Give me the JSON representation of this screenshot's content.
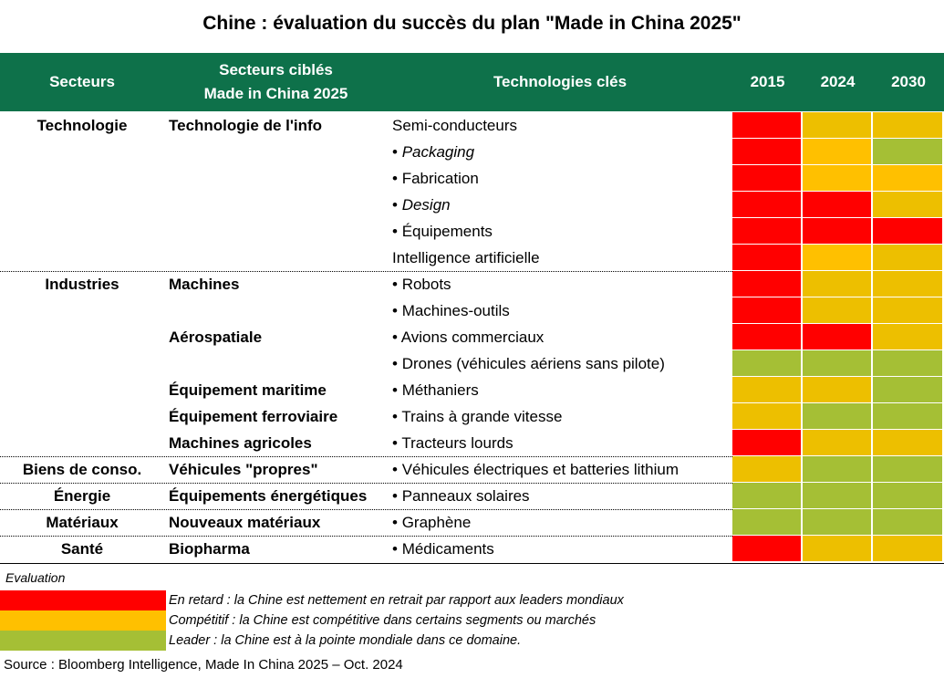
{
  "title": "Chine : évaluation du succès du plan \"Made in China 2025\"",
  "colors": {
    "header_bg": "#0E714A",
    "red": "#FF0000",
    "orange": "#FFC000",
    "amber": "#EDBF00",
    "green": "#A5BF35"
  },
  "header": {
    "sectors": "Secteurs",
    "targeted_line1": "Secteurs ciblés",
    "targeted_line2": "Made in China 2025",
    "technologies": "Technologies clés",
    "years": [
      "2015",
      "2024",
      "2030"
    ]
  },
  "rows": [
    {
      "sector": "Technologie",
      "target": "Technologie de l'info",
      "bullet": false,
      "tech": "Semi-conducteurs",
      "italic": false,
      "cells": [
        "#FF0000",
        "#EDBF00",
        "#EDBF00"
      ]
    },
    {
      "sector": "",
      "target": "",
      "bullet": true,
      "tech": "Packaging",
      "italic": true,
      "cells": [
        "#FF0000",
        "#FFC000",
        "#A5BF35"
      ]
    },
    {
      "sector": "",
      "target": "",
      "bullet": true,
      "tech": "Fabrication",
      "italic": false,
      "cells": [
        "#FF0000",
        "#FFC000",
        "#FFC000"
      ]
    },
    {
      "sector": "",
      "target": "",
      "bullet": true,
      "tech": "Design",
      "italic": true,
      "cells": [
        "#FF0000",
        "#FF0000",
        "#EDBF00"
      ]
    },
    {
      "sector": "",
      "target": "",
      "bullet": true,
      "tech": "Équipements",
      "italic": false,
      "cells": [
        "#FF0000",
        "#FF0000",
        "#FF0000"
      ]
    },
    {
      "sector": "",
      "target": "",
      "bullet": false,
      "tech": "Intelligence artificielle",
      "italic": false,
      "cells": [
        "#FF0000",
        "#FFC000",
        "#EDBF00"
      ],
      "sep_after": true
    },
    {
      "sector": "Industries",
      "target": "Machines",
      "bullet": true,
      "tech": "Robots",
      "italic": false,
      "cells": [
        "#FF0000",
        "#EDBF00",
        "#EDBF00"
      ]
    },
    {
      "sector": "",
      "target": "",
      "bullet": true,
      "tech": "Machines-outils",
      "italic": false,
      "cells": [
        "#FF0000",
        "#EDBF00",
        "#EDBF00"
      ]
    },
    {
      "sector": "",
      "target": "Aérospatiale",
      "bullet": true,
      "tech": "Avions commerciaux",
      "italic": false,
      "cells": [
        "#FF0000",
        "#FF0000",
        "#EDBF00"
      ]
    },
    {
      "sector": "",
      "target": "",
      "bullet": true,
      "tech": "Drones (véhicules aériens sans pilote)",
      "italic": false,
      "cells": [
        "#A5BF35",
        "#A5BF35",
        "#A5BF35"
      ]
    },
    {
      "sector": "",
      "target": "Équipement maritime",
      "bullet": true,
      "tech": "Méthaniers",
      "italic": false,
      "cells": [
        "#EDBF00",
        "#EDBF00",
        "#A5BF35"
      ]
    },
    {
      "sector": "",
      "target": "Équipement ferroviaire",
      "bullet": true,
      "tech": "Trains à grande vitesse",
      "italic": false,
      "cells": [
        "#EDBF00",
        "#A5BF35",
        "#A5BF35"
      ]
    },
    {
      "sector": "",
      "target": "Machines agricoles",
      "bullet": true,
      "tech": "Tracteurs lourds",
      "italic": false,
      "cells": [
        "#FF0000",
        "#EDBF00",
        "#EDBF00"
      ],
      "sep_after": true
    },
    {
      "sector": "Biens de conso.",
      "target": "Véhicules \"propres\"",
      "bullet": true,
      "tech": "Véhicules électriques et batteries lithium",
      "italic": false,
      "cells": [
        "#EDBF00",
        "#A5BF35",
        "#A5BF35"
      ],
      "sep_after": true
    },
    {
      "sector": "Énergie",
      "target": "Équipements énergétiques",
      "bullet": true,
      "tech": "Panneaux solaires",
      "italic": false,
      "cells": [
        "#A5BF35",
        "#A5BF35",
        "#A5BF35"
      ],
      "sep_after": true
    },
    {
      "sector": "Matériaux",
      "target": "Nouveaux matériaux",
      "bullet": true,
      "tech": "Graphène",
      "italic": false,
      "cells": [
        "#A5BF35",
        "#A5BF35",
        "#A5BF35"
      ],
      "sep_after": true
    },
    {
      "sector": "Santé",
      "target": "Biopharma",
      "bullet": true,
      "tech": "Médicaments",
      "italic": false,
      "cells": [
        "#FF0000",
        "#EDBF00",
        "#EDBF00"
      ]
    }
  ],
  "legend": {
    "title": "Evaluation",
    "items": [
      {
        "color": "#FF0000",
        "text": "En retard : la Chine est nettement en retrait par rapport aux leaders mondiaux"
      },
      {
        "color": "#FFC000",
        "text": "Compétitif : la Chine est compétitive dans certains segments ou marchés"
      },
      {
        "color": "#A5BF35",
        "text": "Leader : la Chine est à la pointe mondiale dans ce domaine."
      }
    ]
  },
  "source": "Source : Bloomberg Intelligence, Made In China 2025 – Oct. 2024"
}
